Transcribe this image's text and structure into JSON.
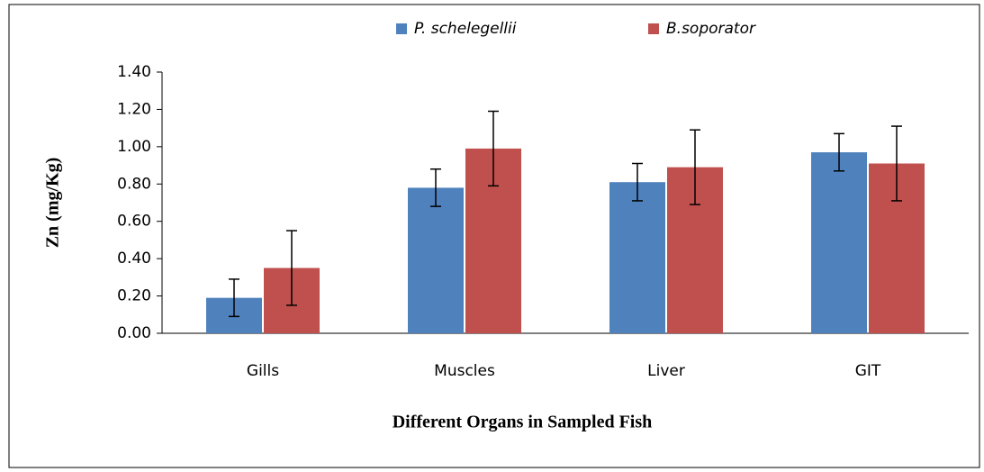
{
  "chart_data": {
    "type": "bar",
    "x_label": "Different Organs in Sampled Fish",
    "y_label": "Zn (mg/Kg)",
    "categories": [
      "Gills",
      "Muscles",
      "Liver",
      "GIT"
    ],
    "series": [
      {
        "name": "P. schelegellii",
        "color": "#4f81bd",
        "values": [
          0.19,
          0.78,
          0.81,
          0.97
        ],
        "errors": [
          0.1,
          0.1,
          0.1,
          0.1
        ]
      },
      {
        "name": "B.soporator",
        "color": "#c0504d",
        "values": [
          0.35,
          0.99,
          0.89,
          0.91
        ],
        "errors": [
          0.2,
          0.2,
          0.2,
          0.2
        ]
      }
    ],
    "ylim": [
      0,
      1.4
    ],
    "yticks": [
      {
        "value": 0,
        "label": "0.00"
      },
      {
        "value": 0.2,
        "label": "0.20"
      },
      {
        "value": 0.4,
        "label": "0.40"
      },
      {
        "value": 0.6,
        "label": "0.60"
      },
      {
        "value": 0.8,
        "label": "0.80"
      },
      {
        "value": 1,
        "label": "1.00"
      },
      {
        "value": 1.2,
        "label": "1.20"
      },
      {
        "value": 1.4,
        "label": "1.40"
      }
    ],
    "legend": "top"
  }
}
